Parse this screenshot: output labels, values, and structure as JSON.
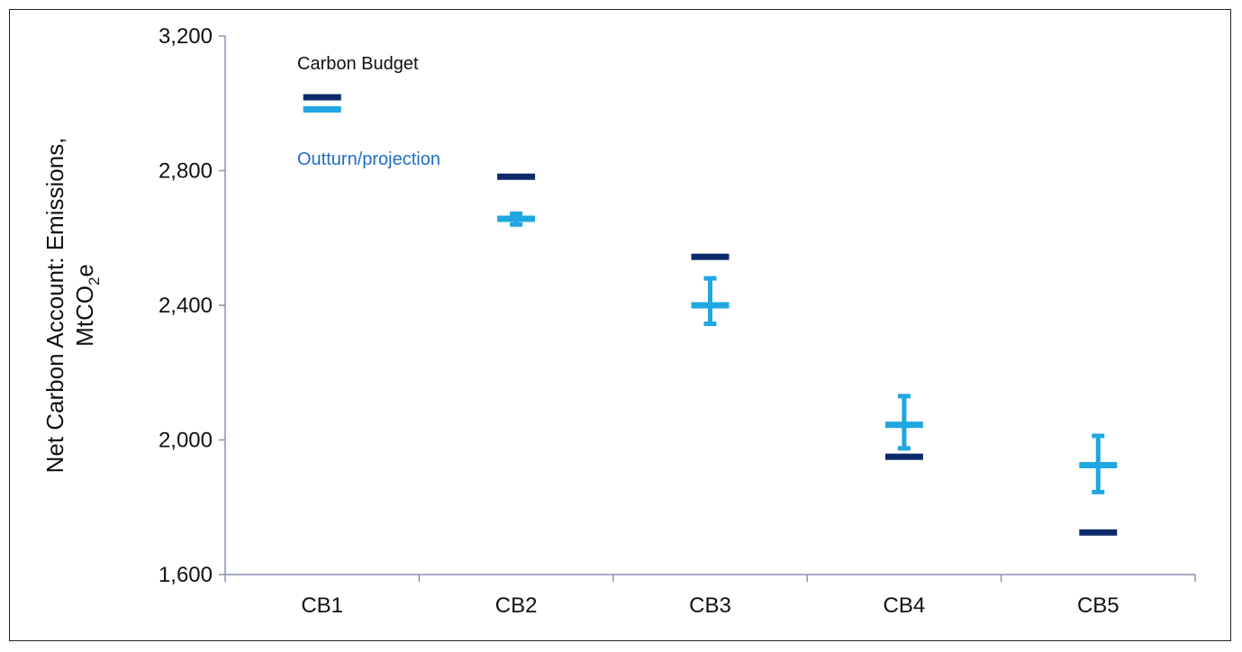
{
  "chart_data": {
    "type": "scatter",
    "categories": [
      "CB1",
      "CB2",
      "CB3",
      "CB4",
      "CB5"
    ],
    "ylabel_line1": "Net Carbon Account: Emissions,",
    "ylabel_line2_prefix": "MtCO",
    "ylabel_line2_sub": "2",
    "ylabel_line2_suffix": "e",
    "ylim": [
      1600,
      3200
    ],
    "yticks": [
      1600,
      2000,
      2400,
      2800,
      3200
    ],
    "ytick_labels": [
      "1,600",
      "2,000",
      "2,400",
      "2,800",
      "3,200"
    ],
    "grid": false,
    "series": [
      {
        "name": "Carbon Budget",
        "color": "#0b2a6b",
        "values": [
          3018,
          2782,
          2544,
          1950,
          1725
        ]
      },
      {
        "name": "Outturn/projection",
        "color": "#1ea7e1",
        "values": [
          2982,
          2657,
          2400,
          2045,
          1925
        ],
        "error_low": [
          null,
          2640,
          2345,
          1975,
          1845
        ],
        "error_high": [
          null,
          2672,
          2480,
          2130,
          2012
        ]
      }
    ],
    "legend_placement": "top-left"
  }
}
